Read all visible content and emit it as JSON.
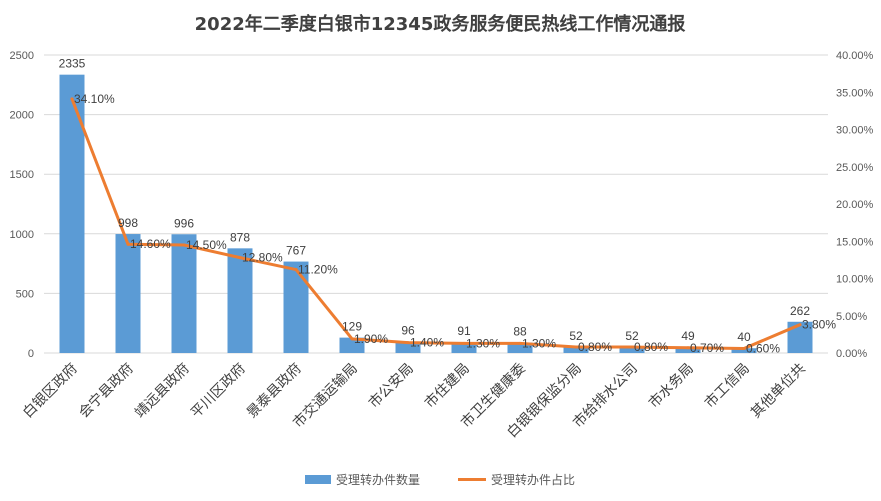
{
  "chart_data": {
    "type": "bar",
    "title": "2022年二季度白银市12345政务服务便民热线工作情况通报",
    "categories": [
      "白银区政府",
      "会宁县政府",
      "靖远县政府",
      "平川区政府",
      "景泰县政府",
      "市交通运输局",
      "市公安局",
      "市住建局",
      "市卫生健康委",
      "白银银保监分局",
      "市给排水公司",
      "市水务局",
      "市工信局",
      "其他单位共"
    ],
    "series": [
      {
        "name": "受理转办件数量",
        "type": "bar",
        "axis": "left",
        "values": [
          2335,
          998,
          996,
          878,
          767,
          129,
          96,
          91,
          88,
          52,
          52,
          49,
          40,
          262
        ],
        "labels": [
          "2335",
          "998",
          "996",
          "878",
          "767",
          "129",
          "96",
          "91",
          "88",
          "52",
          "52",
          "49",
          "40",
          "262"
        ],
        "color": "#5b9bd5"
      },
      {
        "name": "受理转办件占比",
        "type": "line",
        "axis": "right",
        "values": [
          34.1,
          14.6,
          14.5,
          12.8,
          11.2,
          1.9,
          1.4,
          1.3,
          1.3,
          0.8,
          0.8,
          0.7,
          0.6,
          3.8
        ],
        "labels": [
          "34.10%",
          "14.60%",
          "14.50%",
          "12.80%",
          "11.20%",
          "1.90%",
          "1.40%",
          "1.30%",
          "1.30%",
          "0.80%",
          "0.80%",
          "0.70%",
          "0.60%",
          "3.80%"
        ],
        "color": "#ed7d31"
      }
    ],
    "y_left": {
      "min": 0,
      "max": 2500,
      "ticks": [
        "0",
        "500",
        "1000",
        "1500",
        "2000",
        "2500"
      ]
    },
    "y_right": {
      "min": 0,
      "max": 40,
      "ticks": [
        "0.00%",
        "5.00%",
        "10.00%",
        "15.00%",
        "20.00%",
        "25.00%",
        "30.00%",
        "35.00%",
        "40.00%"
      ]
    },
    "grid": true,
    "legend_position": "bottom"
  }
}
